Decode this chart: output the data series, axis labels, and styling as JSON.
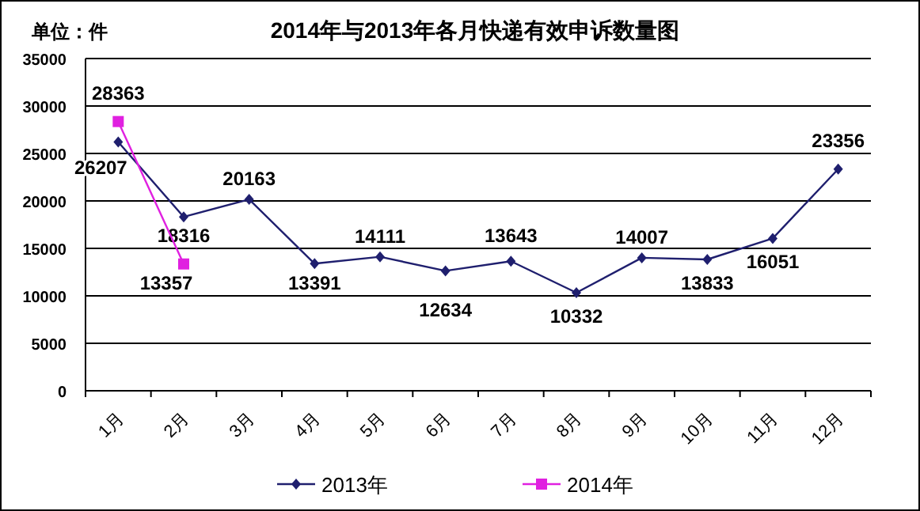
{
  "chart_data": {
    "type": "line",
    "title": "2014年与2013年各月快递有效申诉数量图",
    "annotations": [
      "单位：件"
    ],
    "categories": [
      "1月",
      "2月",
      "3月",
      "4月",
      "5月",
      "6月",
      "7月",
      "8月",
      "9月",
      "10月",
      "11月",
      "12月"
    ],
    "series": [
      {
        "name": "2013年",
        "color": "#1f1f6e",
        "marker": "diamond",
        "values": [
          26207,
          18316,
          20163,
          13391,
          14111,
          12634,
          13643,
          10332,
          14007,
          13833,
          16051,
          23356
        ]
      },
      {
        "name": "2014年",
        "color": "#e020e0",
        "marker": "square",
        "values": [
          28363,
          13357,
          null,
          null,
          null,
          null,
          null,
          null,
          null,
          null,
          null,
          null
        ]
      }
    ],
    "ylim": [
      0,
      35000
    ],
    "yticks": [
      0,
      5000,
      10000,
      15000,
      20000,
      25000,
      30000,
      35000
    ],
    "grid": "y",
    "legend": "bottom",
    "data_labels": true
  }
}
